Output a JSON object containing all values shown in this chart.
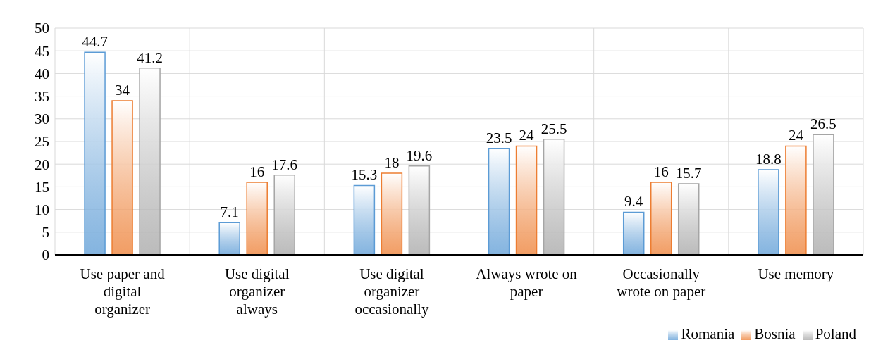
{
  "chart_data": {
    "type": "bar",
    "categories": [
      "Use paper and digital organizer",
      "Use digital organizer always",
      "Use digital organizer occasionally",
      "Always wrote on paper",
      "Occasionally wrote on paper",
      "Use memory"
    ],
    "series": [
      {
        "name": "Romania",
        "color": "#5b9bd5",
        "values": [
          44.7,
          7.1,
          15.3,
          23.5,
          9.4,
          18.8
        ]
      },
      {
        "name": "Bosnia",
        "color": "#ed7d31",
        "values": [
          34,
          16,
          18,
          24,
          16,
          24
        ]
      },
      {
        "name": "Poland",
        "color": "#a5a5a5",
        "values": [
          41.2,
          17.6,
          19.6,
          25.5,
          15.7,
          26.5
        ]
      }
    ],
    "ylim": [
      0,
      50
    ],
    "yticks": [
      0,
      5,
      10,
      15,
      20,
      25,
      30,
      35,
      40,
      45,
      50
    ],
    "grid": true,
    "legend": "bottom right",
    "data_labels": true
  }
}
